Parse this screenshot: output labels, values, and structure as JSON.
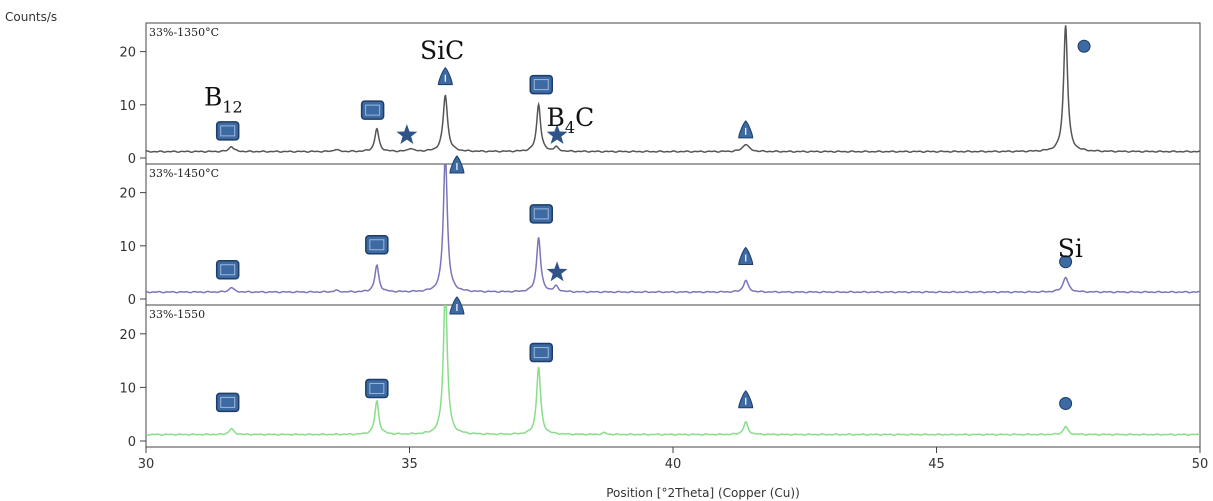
{
  "chart_data": {
    "type": "line",
    "ylabel": "Counts/s",
    "xlabel": "Position [°2Theta] (Copper (Cu))",
    "xlim": [
      30,
      50
    ],
    "x_ticks": [
      "30",
      "35",
      "40",
      "45",
      "50"
    ],
    "y_ticks": [
      "0",
      "10",
      "20"
    ],
    "colors": {
      "1350": "#555555",
      "1450": "#7a75b8",
      "1550": "#88dd88",
      "marker_fill": "#3d6aa3",
      "marker_stroke": "#1d3d66",
      "star": "#2f5489"
    },
    "panels": [
      {
        "label": "33%-1350°C",
        "color_key": "1350",
        "ylim": [
          0,
          25
        ],
        "baseline": 1.2,
        "peaks": [
          {
            "x": 31.62,
            "h": 1.0,
            "w": 0.05
          },
          {
            "x": 33.6,
            "h": 0.4,
            "w": 0.05
          },
          {
            "x": 34.38,
            "h": 4.3,
            "w": 0.045
          },
          {
            "x": 35.02,
            "h": 0.6,
            "w": 0.05
          },
          {
            "x": 35.68,
            "h": 10.6,
            "w": 0.05
          },
          {
            "x": 37.45,
            "h": 8.9,
            "w": 0.045
          },
          {
            "x": 37.78,
            "h": 0.8,
            "w": 0.05
          },
          {
            "x": 41.38,
            "h": 1.4,
            "w": 0.07
          },
          {
            "x": 47.45,
            "h": 23.8,
            "w": 0.045
          }
        ],
        "markers": [
          {
            "type": "square",
            "x": 31.55,
            "y": 5.1
          },
          {
            "type": "square",
            "x": 34.3,
            "y": 9.0
          },
          {
            "type": "star",
            "x": 34.95,
            "y": 4.3
          },
          {
            "type": "triangle",
            "x": 35.68,
            "y": 15.1
          },
          {
            "type": "square",
            "x": 37.5,
            "y": 13.8
          },
          {
            "type": "star",
            "x": 37.8,
            "y": 4.3
          },
          {
            "type": "triangle",
            "x": 41.38,
            "y": 5.1
          },
          {
            "type": "circle",
            "x": 47.8,
            "y": 21.0
          }
        ]
      },
      {
        "label": "33%-1450°C",
        "color_key": "1450",
        "ylim": [
          0,
          25
        ],
        "baseline": 1.3,
        "peaks": [
          {
            "x": 31.62,
            "h": 0.9,
            "w": 0.05
          },
          {
            "x": 33.6,
            "h": 0.3,
            "w": 0.05
          },
          {
            "x": 34.38,
            "h": 5.0,
            "w": 0.045
          },
          {
            "x": 35.68,
            "h": 26.0,
            "w": 0.045
          },
          {
            "x": 37.45,
            "h": 10.3,
            "w": 0.045
          },
          {
            "x": 37.78,
            "h": 1.0,
            "w": 0.05
          },
          {
            "x": 41.38,
            "h": 2.2,
            "w": 0.05
          },
          {
            "x": 47.45,
            "h": 2.8,
            "w": 0.06
          }
        ],
        "markers": [
          {
            "type": "square",
            "x": 31.55,
            "y": 5.5
          },
          {
            "type": "square",
            "x": 34.38,
            "y": 10.2
          },
          {
            "type": "triangle",
            "x": 35.9,
            "y": 25.0
          },
          {
            "type": "square",
            "x": 37.5,
            "y": 16.0
          },
          {
            "type": "star",
            "x": 37.8,
            "y": 5.0
          },
          {
            "type": "triangle",
            "x": 41.38,
            "y": 7.8
          },
          {
            "type": "circle",
            "x": 47.45,
            "y": 7.0
          }
        ]
      },
      {
        "label": "33%-1550",
        "color_key": "1550",
        "ylim": [
          0,
          25
        ],
        "baseline": 1.2,
        "peaks": [
          {
            "x": 31.62,
            "h": 1.1,
            "w": 0.05
          },
          {
            "x": 34.38,
            "h": 6.2,
            "w": 0.045
          },
          {
            "x": 35.68,
            "h": 27.0,
            "w": 0.045
          },
          {
            "x": 37.45,
            "h": 12.6,
            "w": 0.045
          },
          {
            "x": 38.7,
            "h": 0.3,
            "w": 0.05
          },
          {
            "x": 41.38,
            "h": 2.3,
            "w": 0.05
          },
          {
            "x": 47.45,
            "h": 1.5,
            "w": 0.05
          }
        ],
        "markers": [
          {
            "type": "square",
            "x": 31.55,
            "y": 7.2
          },
          {
            "type": "square",
            "x": 34.38,
            "y": 9.8
          },
          {
            "type": "triangle",
            "x": 35.9,
            "y": 25.0
          },
          {
            "type": "square",
            "x": 37.5,
            "y": 16.5
          },
          {
            "type": "triangle",
            "x": 41.38,
            "y": 7.5
          },
          {
            "type": "circle",
            "x": 47.45,
            "y": 7.0
          }
        ]
      }
    ],
    "annotations": [
      {
        "name": "annotation-b12",
        "main": "B",
        "sub": "12",
        "panel": 0,
        "x": 31.1,
        "y": 9.9
      },
      {
        "name": "annotation-sic",
        "main": "SiC",
        "panel": 0,
        "x": 35.2,
        "y": 18.6
      },
      {
        "name": "annotation-b4c",
        "main": "B",
        "sub": "4",
        "tail": "C",
        "panel": 0,
        "x": 37.6,
        "y": 6.0
      },
      {
        "name": "annotation-si",
        "main": "Si",
        "panel": 1,
        "x": 47.3,
        "y": 7.9
      }
    ]
  }
}
